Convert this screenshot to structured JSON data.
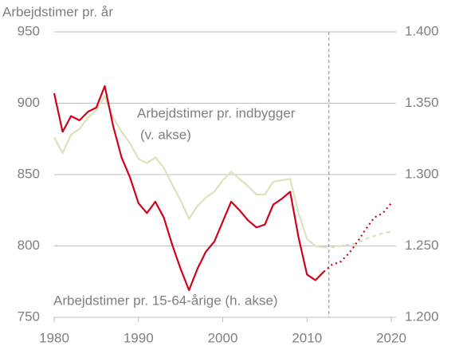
{
  "chart_data": {
    "type": "line",
    "title": "Arbejdstimer pr. år",
    "annotations": [
      "Arbejdstimer pr. indbygger",
      "(v. akse)",
      "Arbejdstimer pr. 15-64-årige (h. akse)"
    ],
    "xlim": [
      1980,
      2020
    ],
    "xticks": [
      1980,
      1990,
      2000,
      2010,
      2020
    ],
    "ylim": [
      750,
      950
    ],
    "yticks": [
      750,
      800,
      850,
      900,
      950
    ],
    "y2lim": [
      1.2,
      1.4
    ],
    "y2ticks": [
      {
        "value": 1.2,
        "label": "1.200"
      },
      {
        "value": 1.25,
        "label": "1.250"
      },
      {
        "value": 1.3,
        "label": "1.300"
      },
      {
        "value": 1.35,
        "label": "1.350"
      },
      {
        "value": 1.4,
        "label": "1.400"
      }
    ],
    "grid": true,
    "vline_x": 2012.6,
    "series": [
      {
        "color": "#dbe3b8",
        "style": "solid",
        "x": [
          1980,
          1981,
          1982,
          1983,
          1984,
          1985,
          1986,
          1987,
          1988,
          1989,
          1990,
          1991,
          1992,
          1993,
          1994,
          1995,
          1996,
          1997,
          1998,
          1999,
          2000,
          2001,
          2002,
          2003,
          2004,
          2005,
          2006,
          2007,
          2008,
          2009,
          2010,
          2011,
          2012
        ],
        "values": [
          876,
          865,
          878,
          882,
          890,
          895,
          905,
          890,
          880,
          872,
          861,
          858,
          862,
          855,
          843,
          832,
          819,
          828,
          834,
          838,
          846,
          852,
          847,
          842,
          836,
          836,
          845,
          846,
          847,
          823,
          805,
          800,
          799
        ]
      },
      {
        "color": "#dbe3b8",
        "style": "dashed",
        "x": [
          2012,
          2013,
          2014,
          2015,
          2016,
          2017,
          2018,
          2019,
          2020
        ],
        "values": [
          799,
          799,
          800,
          801,
          802,
          805,
          807,
          809,
          810
        ]
      },
      {
        "color": "#d0021b",
        "style": "solid",
        "axis": "y2",
        "x": [
          1980,
          1981,
          1982,
          1983,
          1984,
          1985,
          1986,
          1987,
          1988,
          1989,
          1990,
          1991,
          1992,
          1993,
          1994,
          1995,
          1996,
          1997,
          1998,
          1999,
          2000,
          2001,
          2002,
          2003,
          2004,
          2005,
          2006,
          2007,
          2008,
          2009,
          2010,
          2011,
          2012
        ],
        "values": [
          1.357,
          1.33,
          1.341,
          1.338,
          1.344,
          1.347,
          1.362,
          1.334,
          1.312,
          1.298,
          1.28,
          1.273,
          1.281,
          1.27,
          1.251,
          1.234,
          1.219,
          1.234,
          1.246,
          1.253,
          1.267,
          1.281,
          1.275,
          1.268,
          1.263,
          1.265,
          1.279,
          1.283,
          1.288,
          1.256,
          1.23,
          1.226,
          1.232
        ]
      },
      {
        "color": "#d0021b",
        "style": "dotted",
        "axis": "y2",
        "x": [
          2012,
          2013,
          2014,
          2015,
          2016,
          2017,
          2018,
          2019,
          2020
        ],
        "values": [
          1.232,
          1.237,
          1.239,
          1.245,
          1.253,
          1.262,
          1.27,
          1.273,
          1.28
        ]
      }
    ]
  }
}
